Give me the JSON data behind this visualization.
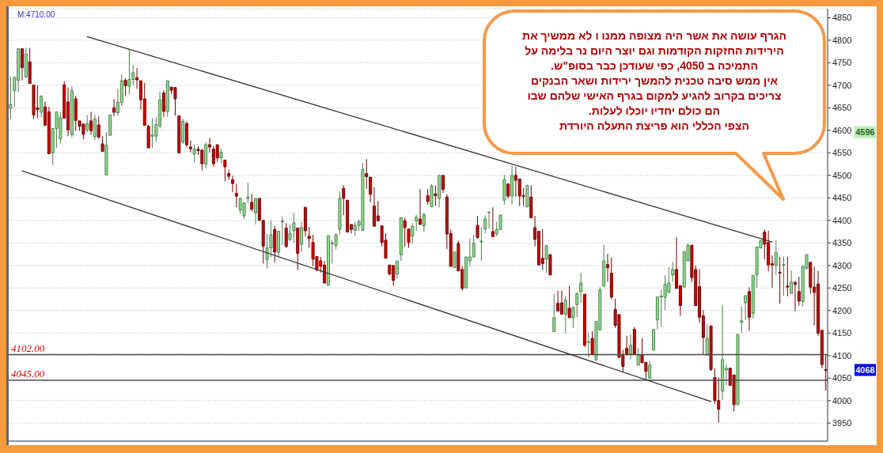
{
  "chart_data": {
    "type": "candlestick",
    "categories": [
      null,
      null,
      null,
      null,
      null,
      null,
      null,
      null,
      null,
      null,
      null,
      null,
      null,
      null,
      null,
      null,
      null,
      null,
      null,
      null,
      null,
      null,
      null,
      null,
      null,
      null,
      null,
      null,
      null,
      null,
      null,
      null,
      null,
      null,
      null,
      null,
      null,
      null,
      null,
      null,
      null,
      null,
      null,
      null,
      null,
      null,
      null,
      null,
      null,
      null,
      null,
      null,
      null,
      null,
      null,
      null,
      null,
      null,
      null,
      null,
      null,
      null,
      null,
      null,
      null,
      null,
      null,
      null,
      null,
      null,
      null,
      null,
      null,
      null,
      null,
      null,
      null,
      null,
      null,
      null,
      null,
      null,
      null,
      null,
      null,
      null,
      null,
      null,
      null,
      null,
      null,
      null,
      null,
      null,
      null,
      null,
      null,
      null,
      null,
      null,
      null,
      null,
      null,
      null,
      null,
      null,
      null,
      null,
      null,
      null,
      null,
      null,
      null,
      null,
      null,
      null,
      null,
      null,
      null,
      null,
      null,
      null,
      null,
      null,
      null,
      null,
      null,
      null,
      null,
      null,
      null,
      null,
      null,
      null,
      null,
      null,
      null,
      null,
      null,
      null,
      null,
      null,
      null,
      null,
      null,
      null,
      null,
      null,
      null,
      null,
      null,
      null,
      null,
      null,
      null,
      null,
      null,
      null,
      null,
      null,
      null,
      null,
      null,
      null,
      null,
      null,
      null,
      null,
      null,
      null,
      null,
      null,
      null,
      null,
      null,
      null,
      null,
      null,
      null,
      null,
      null,
      null,
      null,
      null,
      null,
      null,
      null,
      null,
      null,
      null,
      null,
      null,
      null,
      null,
      null,
      null,
      null,
      null,
      null,
      null,
      null,
      null,
      null,
      null,
      null,
      null,
      null,
      null,
      null,
      null,
      null,
      null,
      null,
      null
    ],
    "ohlc": [
      [
        4649,
        4719,
        4625,
        4657
      ],
      [
        4688,
        4720,
        4652,
        4717
      ],
      [
        4711,
        4781,
        4684,
        4781
      ],
      [
        4781,
        4781,
        4711,
        4739
      ],
      [
        4719,
        4783,
        4716,
        4769
      ],
      [
        4752,
        4783,
        4704,
        4704
      ],
      [
        4700,
        4700,
        4625,
        4634
      ],
      [
        4650,
        4700,
        4628,
        4646
      ],
      [
        4640,
        4676,
        4629,
        4676
      ],
      [
        4652,
        4664,
        4611,
        4611
      ],
      [
        4641,
        4652,
        4548,
        4548
      ],
      [
        4550,
        4604,
        4523,
        4604
      ],
      [
        4604,
        4641,
        4561,
        4641
      ],
      [
        4581,
        4640,
        4571,
        4628
      ],
      [
        4701,
        4709,
        4627,
        4627
      ],
      [
        4663,
        4695,
        4587,
        4601
      ],
      [
        4590,
        4697,
        4585,
        4688
      ],
      [
        4670,
        4676,
        4599,
        4622
      ],
      [
        4621,
        4621,
        4599,
        4609
      ],
      [
        4614,
        4614,
        4580,
        4591
      ],
      [
        4601,
        4634,
        4596,
        4615
      ],
      [
        4621,
        4641,
        4590,
        4599
      ],
      [
        4586,
        4634,
        4578,
        4625
      ],
      [
        4612,
        4631,
        4581,
        4585
      ],
      [
        4570,
        4587,
        4553,
        4553
      ],
      [
        4501,
        4596,
        4501,
        4567
      ],
      [
        4589,
        4634,
        4589,
        4634
      ],
      [
        4650,
        4669,
        4631,
        4640
      ],
      [
        4639,
        4692,
        4632,
        4662
      ],
      [
        4662,
        4724,
        4654,
        4710
      ],
      [
        4711,
        4716,
        4677,
        4699
      ],
      [
        4698,
        4781,
        4680,
        4713
      ],
      [
        4713,
        4745,
        4700,
        4728
      ],
      [
        4717,
        4738,
        4692,
        4712
      ],
      [
        4710,
        4710,
        4646,
        4668
      ],
      [
        4670,
        4705,
        4611,
        4611
      ],
      [
        4609,
        4612,
        4561,
        4561
      ],
      [
        4587,
        4627,
        4561,
        4590
      ],
      [
        4587,
        4629,
        4574,
        4613
      ],
      [
        4610,
        4686,
        4604,
        4668
      ],
      [
        4683,
        4689,
        4630,
        4642
      ],
      [
        4642,
        4710,
        4630,
        4710
      ],
      [
        4696,
        4696,
        4680,
        4689
      ],
      [
        4695,
        4695,
        4633,
        4670
      ],
      [
        4632,
        4632,
        4550,
        4550
      ],
      [
        4574,
        4625,
        4570,
        4620
      ],
      [
        4615,
        4620,
        4562,
        4568
      ],
      [
        4563,
        4577,
        4551,
        4559
      ],
      [
        4548,
        4568,
        4529,
        4558
      ],
      [
        4558,
        4565,
        4545,
        4555
      ],
      [
        4556,
        4558,
        4511,
        4526
      ],
      [
        4525,
        4574,
        4515,
        4568
      ],
      [
        4568,
        4583,
        4551,
        4563
      ],
      [
        4558,
        4565,
        4519,
        4526
      ],
      [
        4568,
        4568,
        4530,
        4539
      ],
      [
        4539,
        4559,
        4527,
        4551
      ],
      [
        4534,
        4534,
        4487,
        4519
      ],
      [
        4504,
        4513,
        4490,
        4498
      ],
      [
        4490,
        4499,
        4463,
        4482
      ],
      [
        4460,
        4481,
        4429,
        4454
      ],
      [
        4423,
        4449,
        4414,
        4449
      ],
      [
        4410,
        4439,
        4403,
        4439
      ],
      [
        4449,
        4484,
        4438,
        4452
      ],
      [
        4440,
        4459,
        4420,
        4425
      ],
      [
        4417,
        4449,
        4391,
        4449
      ],
      [
        4449,
        4449,
        4400,
        4400
      ],
      [
        4400,
        4400,
        4304,
        4343
      ],
      [
        4313,
        4371,
        4293,
        4339
      ],
      [
        4339,
        4400,
        4319,
        4368
      ],
      [
        4380,
        4388,
        4307,
        4330
      ],
      [
        4329,
        4376,
        4318,
        4376
      ],
      [
        4397,
        4409,
        4345,
        4399
      ],
      [
        4383,
        4394,
        4339,
        4342
      ],
      [
        4358,
        4391,
        4354,
        4371
      ],
      [
        4377,
        4417,
        4351,
        4395
      ],
      [
        4383,
        4383,
        4290,
        4327
      ],
      [
        4347,
        4397,
        4330,
        4384
      ],
      [
        4429,
        4429,
        4365,
        4377
      ],
      [
        4365,
        4385,
        4339,
        4360
      ],
      [
        4351,
        4368,
        4298,
        4314
      ],
      [
        4320,
        4320,
        4287,
        4290
      ],
      [
        4310,
        4319,
        4284,
        4298
      ],
      [
        4301,
        4310,
        4261,
        4261
      ],
      [
        4256,
        4366,
        4256,
        4366
      ],
      [
        4348,
        4356,
        4304,
        4350
      ],
      [
        4344,
        4371,
        4336,
        4368
      ],
      [
        4380,
        4464,
        4368,
        4449
      ],
      [
        4471,
        4478,
        4412,
        4449
      ],
      [
        4445,
        4445,
        4374,
        4374
      ],
      [
        4391,
        4391,
        4371,
        4380
      ],
      [
        4378,
        4397,
        4365,
        4389
      ],
      [
        4389,
        4403,
        4377,
        4397
      ],
      [
        4378,
        4527,
        4378,
        4513
      ],
      [
        4504,
        4536,
        4470,
        4497
      ],
      [
        4496,
        4496,
        4440,
        4458
      ],
      [
        4432,
        4474,
        4387,
        4387
      ],
      [
        4410,
        4443,
        4399,
        4399
      ],
      [
        4388,
        4388,
        4342,
        4351
      ],
      [
        4356,
        4371,
        4316,
        4316
      ],
      [
        4301,
        4301,
        4278,
        4281
      ],
      [
        4300,
        4300,
        4255,
        4267
      ],
      [
        4281,
        4310,
        4271,
        4310
      ],
      [
        4324,
        4406,
        4310,
        4406
      ],
      [
        4399,
        4406,
        4342,
        4384
      ],
      [
        4381,
        4381,
        4339,
        4351
      ],
      [
        4365,
        4394,
        4348,
        4387
      ],
      [
        4399,
        4413,
        4377,
        4407
      ],
      [
        4403,
        4470,
        4391,
        4391
      ],
      [
        4388,
        4417,
        4374,
        4413
      ],
      [
        4455,
        4470,
        4435,
        4442
      ],
      [
        4430,
        4481,
        4430,
        4476
      ],
      [
        4459,
        4478,
        4432,
        4455
      ],
      [
        4449,
        4500,
        4429,
        4500
      ],
      [
        4500,
        4500,
        4461,
        4469
      ],
      [
        4452,
        4458,
        4336,
        4370
      ],
      [
        4371,
        4380,
        4298,
        4298
      ],
      [
        4295,
        4330,
        4295,
        4330
      ],
      [
        4349,
        4355,
        4288,
        4288
      ],
      [
        4291,
        4298,
        4244,
        4249
      ],
      [
        4250,
        4319,
        4250,
        4319
      ],
      [
        4310,
        4360,
        4298,
        4319
      ],
      [
        4319,
        4368,
        4319,
        4349
      ],
      [
        4389,
        4410,
        4359,
        4362
      ],
      [
        4352,
        4385,
        4310,
        4354
      ],
      [
        4381,
        4411,
        4371,
        4403
      ],
      [
        4417,
        4419,
        4382,
        4419
      ],
      [
        4375,
        4429,
        4364,
        4364
      ],
      [
        4370,
        4397,
        4365,
        4380
      ],
      [
        4380,
        4412,
        4380,
        4412
      ],
      [
        4445,
        4501,
        4435,
        4490
      ],
      [
        4481,
        4481,
        4449,
        4454
      ],
      [
        4454,
        4522,
        4435,
        4500
      ],
      [
        4500,
        4519,
        4452,
        4489
      ],
      [
        4492,
        4492,
        4432,
        4454
      ],
      [
        4455,
        4472,
        4432,
        4453
      ],
      [
        4430,
        4478,
        4429,
        4478
      ],
      [
        4452,
        4478,
        4406,
        4406
      ],
      [
        4384,
        4410,
        4342,
        4358
      ],
      [
        4376,
        4376,
        4301,
        4301
      ],
      [
        4316,
        4381,
        4290,
        4304
      ],
      [
        4314,
        4346,
        4284,
        4344
      ],
      [
        4324,
        4325,
        4279,
        4279
      ],
      [
        4153,
        4237,
        4153,
        4184
      ],
      [
        4216,
        4244,
        4199,
        4199
      ],
      [
        4217,
        4244,
        4191,
        4192
      ],
      [
        4192,
        4232,
        4150,
        4223
      ],
      [
        4205,
        4255,
        4184,
        4184
      ],
      [
        4184,
        4207,
        4161,
        4207
      ],
      [
        4213,
        4240,
        4185,
        4237
      ],
      [
        4242,
        4284,
        4217,
        4261
      ],
      [
        4236,
        4236,
        4119,
        4123
      ],
      [
        4130,
        4151,
        4096,
        4131
      ],
      [
        4138,
        4154,
        4102,
        4102
      ],
      [
        4091,
        4176,
        4088,
        4176
      ],
      [
        4157,
        4252,
        4157,
        4246
      ],
      [
        4254,
        4346,
        4254,
        4310
      ],
      [
        4302,
        4326,
        4264,
        4295
      ],
      [
        4283,
        4318,
        4225,
        4230
      ],
      [
        4202,
        4226,
        4161,
        4167
      ],
      [
        4191,
        4191,
        4094,
        4096
      ],
      [
        4100,
        4113,
        4063,
        4076
      ],
      [
        4116,
        4144,
        4100,
        4104
      ],
      [
        4103,
        4147,
        4092,
        4123
      ],
      [
        4158,
        4164,
        4103,
        4103
      ],
      [
        4079,
        4116,
        4079,
        4100
      ],
      [
        4101,
        4138,
        4084,
        4084
      ],
      [
        4085,
        4085,
        4047,
        4065
      ],
      [
        4050,
        4088,
        4047,
        4079
      ],
      [
        4112,
        4158,
        4112,
        4158
      ],
      [
        4179,
        4230,
        4158,
        4230
      ],
      [
        4230,
        4246,
        4164,
        4232
      ],
      [
        4229,
        4278,
        4201,
        4258
      ],
      [
        4240,
        4296,
        4240,
        4261
      ],
      [
        4279,
        4308,
        4264,
        4291
      ],
      [
        4291,
        4363,
        4249,
        4249
      ],
      [
        4255,
        4255,
        4188,
        4211
      ],
      [
        4252,
        4331,
        4252,
        4331
      ],
      [
        4310,
        4349,
        4310,
        4345
      ],
      [
        4345,
        4345,
        4263,
        4273
      ],
      [
        4291,
        4300,
        4211,
        4211
      ],
      [
        4253,
        4292,
        4173,
        4185
      ],
      [
        4188,
        4201,
        4103,
        4140
      ],
      [
        4101,
        4169,
        4101,
        4138
      ],
      [
        4166,
        4166,
        4066,
        4069
      ],
      [
        4051,
        4072,
        3993,
        4000
      ],
      [
        4000,
        4051,
        3951,
        3981
      ],
      [
        4021,
        4213,
        4002,
        4091
      ],
      [
        4068,
        4080,
        4034,
        4072
      ],
      [
        4072,
        4072,
        4034,
        4034
      ],
      [
        4057,
        4057,
        3976,
        3991
      ],
      [
        3991,
        4147,
        3991,
        4147
      ],
      [
        4174,
        4209,
        4150,
        4177
      ],
      [
        4217,
        4233,
        4179,
        4233
      ],
      [
        4242,
        4252,
        4156,
        4185
      ],
      [
        4194,
        4278,
        4182,
        4278
      ],
      [
        4279,
        4341,
        4250,
        4341
      ],
      [
        4339,
        4355,
        4339,
        4355
      ],
      [
        4374,
        4380,
        4313,
        4347
      ],
      [
        4351,
        4377,
        4287,
        4301
      ],
      [
        4304,
        4322,
        4250,
        4301
      ],
      [
        4300,
        4356,
        4278,
        4329
      ],
      [
        4285,
        4319,
        4215,
        4283
      ],
      [
        4300,
        4320,
        4233,
        4302
      ],
      [
        4254,
        4319,
        4231,
        4252
      ],
      [
        4238,
        4289,
        4238,
        4263
      ],
      [
        4262,
        4266,
        4198,
        4258
      ],
      [
        4242,
        4275,
        4211,
        4221
      ],
      [
        4220,
        4298,
        4209,
        4298
      ],
      [
        4294,
        4324,
        4290,
        4324
      ],
      [
        4307,
        4307,
        4237,
        4252
      ],
      [
        4252,
        4298,
        4167,
        4240
      ],
      [
        4259,
        4288,
        4144,
        4150
      ],
      [
        4156,
        4156,
        4072,
        4080
      ],
      [
        4069,
        4101,
        4022,
        4068
      ]
    ],
    "colors": [
      "#8fe38f",
      "#8fe38f",
      "#8fe38f",
      "#cc0000",
      "#8fe38f",
      "#cc0000",
      "#cc0000",
      "#cc0000",
      "#8fe38f",
      "#cc0000",
      "#cc0000",
      "#8fe38f",
      "#8fe38f",
      "#8fe38f",
      "#cc0000",
      "#cc0000",
      "#8fe38f",
      "#cc0000",
      "#cc0000",
      "#cc0000",
      "#8fe38f",
      "#cc0000",
      "#8fe38f",
      "#cc0000",
      "#cc0000",
      "#8fe38f",
      "#8fe38f",
      "#cc0000",
      "#8fe38f",
      "#8fe38f",
      "#cc0000",
      "#8fe38f",
      "#8fe38f",
      "#cc0000",
      "#cc0000",
      "#cc0000",
      "#cc0000",
      "#8fe38f",
      "#8fe38f",
      "#8fe38f",
      "#cc0000",
      "#8fe38f",
      "#cc0000",
      "#cc0000",
      "#cc0000",
      "#8fe38f",
      "#cc0000",
      "#cc0000",
      "#8fe38f",
      "#cc0000",
      "#cc0000",
      "#8fe38f",
      "#cc0000",
      "#cc0000",
      "#cc0000",
      "#8fe38f",
      "#cc0000",
      "#cc0000",
      "#cc0000",
      "#cc0000",
      "#8fe38f",
      "#8fe38f",
      "#8fe38f",
      "#cc0000",
      "#8fe38f",
      "#cc0000",
      "#cc0000",
      "#8fe38f",
      "#8fe38f",
      "#cc0000",
      "#8fe38f",
      "#8fe38f",
      "#cc0000",
      "#8fe38f",
      "#8fe38f",
      "#cc0000",
      "#8fe38f",
      "#cc0000",
      "#cc0000",
      "#cc0000",
      "#cc0000",
      "#cc0000",
      "#cc0000",
      "#8fe38f",
      "#8fe38f",
      "#8fe38f",
      "#8fe38f",
      "#cc0000",
      "#cc0000",
      "#cc0000",
      "#8fe38f",
      "#8fe38f",
      "#8fe38f",
      "#cc0000",
      "#cc0000",
      "#cc0000",
      "#cc0000",
      "#cc0000",
      "#cc0000",
      "#cc0000",
      "#cc0000",
      "#8fe38f",
      "#8fe38f",
      "#cc0000",
      "#cc0000",
      "#8fe38f",
      "#8fe38f",
      "#cc0000",
      "#8fe38f",
      "#cc0000",
      "#8fe38f",
      "#cc0000",
      "#8fe38f",
      "#cc0000",
      "#cc0000",
      "#cc0000",
      "#8fe38f",
      "#cc0000",
      "#cc0000",
      "#8fe38f",
      "#8fe38f",
      "#8fe38f",
      "#cc0000",
      "#8fe38f",
      "#8fe38f",
      "#8fe38f",
      "#cc0000",
      "#8fe38f",
      "#8fe38f",
      "#8fe38f",
      "#cc0000",
      "#8fe38f",
      "#cc0000",
      "#cc0000",
      "#cc0000",
      "#8fe38f",
      "#cc0000",
      "#cc0000",
      "#cc0000",
      "#cc0000",
      "#8fe38f",
      "#cc0000",
      "#8fe38f",
      "#cc0000",
      "#cc0000",
      "#8fe38f",
      "#cc0000",
      "#8fe38f",
      "#8fe38f",
      "#8fe38f",
      "#cc0000",
      "#8fe38f",
      "#cc0000",
      "#8fe38f",
      "#8fe38f",
      "#8fe38f",
      "#cc0000",
      "#cc0000",
      "#cc0000",
      "#cc0000",
      "#cc0000",
      "#cc0000",
      "#8fe38f",
      "#cc0000",
      "#8fe38f",
      "#cc0000",
      "#cc0000",
      "#8fe38f",
      "#8fe38f",
      "#8fe38f",
      "#8fe38f",
      "#8fe38f",
      "#8fe38f",
      "#8fe38f",
      "#cc0000",
      "#cc0000",
      "#8fe38f",
      "#8fe38f",
      "#cc0000",
      "#cc0000",
      "#cc0000",
      "#cc0000",
      "#8fe38f",
      "#cc0000",
      "#cc0000",
      "#cc0000",
      "#8fe38f",
      "#8fe38f",
      "#cc0000",
      "#cc0000",
      "#8fe38f",
      "#8fe38f",
      "#8fe38f",
      "#cc0000",
      "#8fe38f",
      "#8fe38f",
      "#8fe38f",
      "#cc0000",
      "#cc0000",
      "#cc0000",
      "#8fe38f",
      "#cc0000",
      "#8fe38f",
      "#cc0000",
      "#8fe38f",
      "#cc0000",
      "#cc0000",
      "#8fe38f",
      "#8fe38f",
      "#cc0000",
      "#cc0000",
      "#cc0000",
      "#cc0000",
      "#cc0000"
    ],
    "series": [
      {
        "type": "line",
        "color": "#333333",
        "values": [
          null,
          null,
          null,
          null,
          null,
          null,
          null,
          null,
          null,
          null,
          null,
          null,
          null,
          null,
          null,
          null,
          null,
          null,
          null,
          null,
          4808,
          null,
          null,
          null,
          null,
          null,
          null,
          null,
          null,
          null,
          null,
          null,
          null,
          null,
          null,
          null,
          null,
          null,
          null,
          null,
          null,
          null,
          null,
          null,
          null,
          null,
          null,
          null,
          null,
          null,
          null,
          null,
          null,
          null,
          null,
          null,
          null,
          null,
          null,
          null,
          null,
          null,
          null,
          null,
          null,
          null,
          null,
          null,
          null,
          null,
          null,
          null,
          null,
          null,
          null,
          null,
          null,
          null,
          null,
          null,
          null,
          null,
          null,
          null,
          null,
          null,
          null,
          null,
          null,
          null,
          null,
          null,
          null,
          null,
          null,
          null,
          null,
          null,
          null,
          null,
          null,
          null,
          null,
          null,
          null,
          null,
          null,
          null,
          null,
          null,
          null,
          null,
          null,
          null,
          null,
          null,
          null,
          null,
          null,
          null,
          null,
          null,
          null,
          null,
          null,
          null,
          null,
          null,
          null,
          null,
          null,
          null,
          null,
          null,
          null,
          null,
          null,
          null,
          null,
          null,
          null,
          null,
          null,
          null,
          null,
          null,
          null,
          null,
          null,
          null,
          null,
          null,
          null,
          null,
          null,
          null,
          null,
          null,
          null,
          null,
          null,
          null,
          null,
          null,
          null,
          null,
          null,
          null,
          null,
          null,
          null,
          null,
          null,
          null,
          null,
          null,
          null,
          null,
          null,
          null,
          null,
          null,
          null,
          null,
          null,
          null,
          null,
          null,
          null,
          null,
          null,
          null,
          null,
          null,
          null,
          null,
          null,
          null,
          null,
          4352,
          null,
          null,
          null,
          null,
          null,
          null,
          null,
          null,
          null,
          null,
          null,
          null,
          null,
          null
        ]
      },
      {
        "type": "line",
        "color": "#333333",
        "values": [
          null,
          null,
          null,
          4510,
          null,
          null,
          null,
          null,
          null,
          null,
          null,
          null,
          null,
          null,
          null,
          null,
          null,
          null,
          null,
          null,
          null,
          null,
          null,
          null,
          null,
          null,
          null,
          null,
          null,
          null,
          null,
          null,
          null,
          null,
          null,
          null,
          null,
          null,
          null,
          null,
          null,
          null,
          null,
          null,
          null,
          null,
          null,
          null,
          null,
          null,
          null,
          null,
          null,
          null,
          null,
          null,
          null,
          null,
          null,
          null,
          null,
          null,
          null,
          null,
          null,
          null,
          null,
          null,
          null,
          null,
          null,
          null,
          null,
          null,
          null,
          null,
          null,
          null,
          null,
          null,
          null,
          null,
          null,
          null,
          null,
          null,
          null,
          null,
          null,
          null,
          null,
          null,
          null,
          null,
          null,
          null,
          null,
          null,
          null,
          null,
          null,
          null,
          null,
          null,
          null,
          null,
          null,
          null,
          null,
          null,
          null,
          null,
          null,
          null,
          null,
          null,
          null,
          null,
          null,
          null,
          null,
          null,
          null,
          null,
          null,
          null,
          null,
          null,
          null,
          null,
          null,
          null,
          null,
          null,
          null,
          null,
          null,
          null,
          null,
          null,
          null,
          null,
          null,
          null,
          null,
          null,
          null,
          null,
          null,
          null,
          null,
          null,
          null,
          null,
          null,
          null,
          null,
          null,
          null,
          null,
          null,
          null,
          null,
          null,
          null,
          null,
          null,
          null,
          null,
          null,
          null,
          null,
          null,
          null,
          null,
          null,
          null,
          null,
          null,
          null,
          null,
          null,
          null,
          3998,
          null,
          null,
          null,
          null,
          null,
          null,
          null,
          null,
          null,
          null,
          null,
          null,
          null,
          null,
          null,
          null,
          null,
          null,
          null,
          null,
          null,
          null,
          null,
          null,
          null,
          null,
          null,
          null,
          null,
          null
        ]
      }
    ],
    "ylim": [
      3910,
      4870
    ],
    "yticks": [
      3950,
      4000,
      4050,
      4100,
      4150,
      4200,
      4250,
      4300,
      4350,
      4400,
      4450,
      4500,
      4550,
      4600,
      4650,
      4700,
      4750,
      4800,
      4850
    ],
    "y2lim": [
      3910,
      4870
    ],
    "y2ticks": [
      4068,
      4596
    ],
    "grid": "y",
    "tick_labels": "y",
    "ref_lines": [
      {
        "axis": "y",
        "value": 4102,
        "label": "4102.00",
        "color": "#4d4d4d"
      },
      {
        "axis": "y",
        "value": 4045,
        "label": "4045.00",
        "color": "#4d4d4d"
      }
    ],
    "annotations": [
      "M:4710.00",
      "הגרף עושה את אשר היה מצופה ממנו ו לא ממשיך את\nהירידות החזקות הקודמות וגם יוצר היום נר בלימה על\nהתמיכה ב 4050, כפי שעודכן כבר בסופ\"ש.\nאין ממש סיבה טכנית להמשך ירידות ושאר הבנקים\nצריכים בקרוב להגיע למקום בגרף האישי שלהם שבו\nהם כולם יחדיו יוכלו לעלות.\nהצפי הכללי הוא פריצת התעלה היורדת"
    ]
  }
}
